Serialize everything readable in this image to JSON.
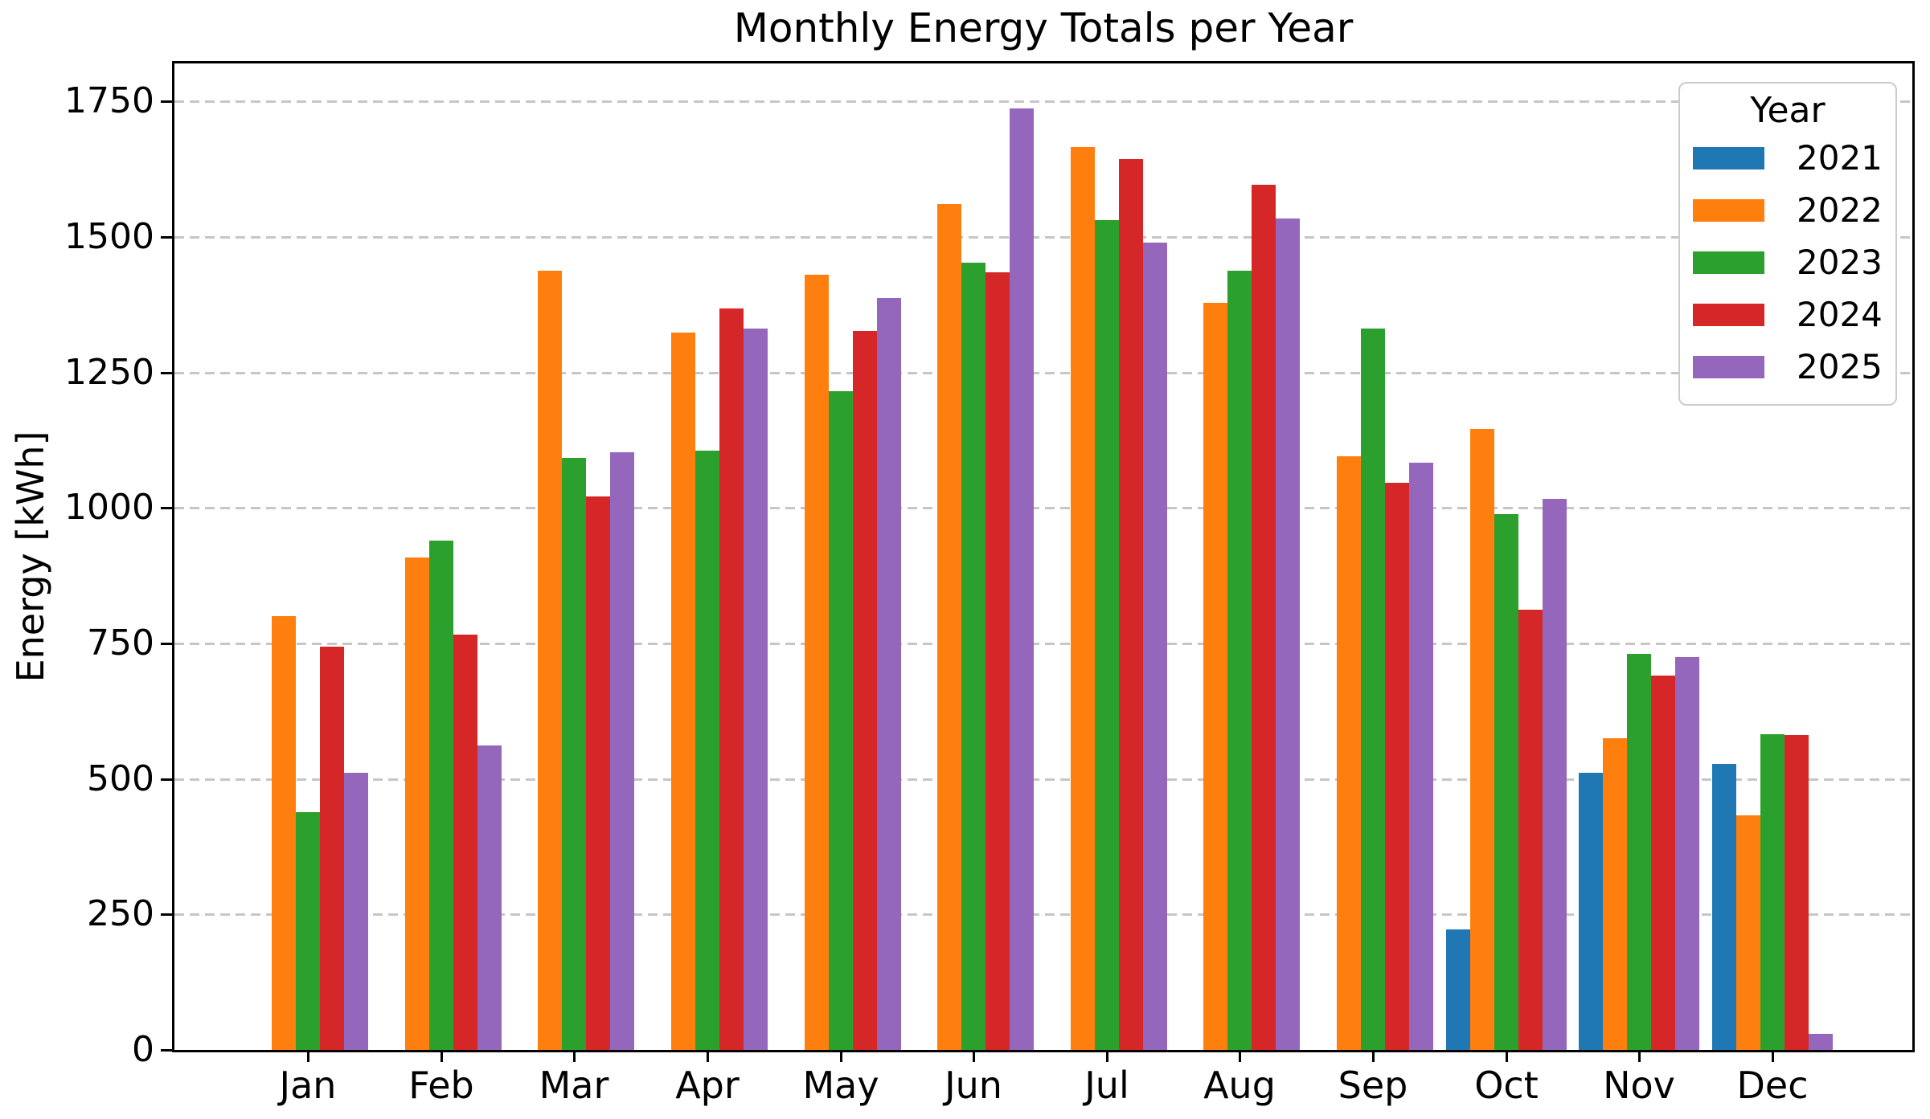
{
  "chart_data": {
    "type": "bar",
    "title": "Monthly Energy Totals per Year",
    "xlabel": "",
    "ylabel": "Energy [kWh]",
    "categories": [
      "Jan",
      "Feb",
      "Mar",
      "Apr",
      "May",
      "Jun",
      "Jul",
      "Aug",
      "Sep",
      "Oct",
      "Nov",
      "Dec"
    ],
    "yticks": [
      0,
      250,
      500,
      750,
      1000,
      1250,
      1500,
      1750
    ],
    "ylim": [
      0,
      1820
    ],
    "grid": {
      "axis": "y",
      "style": "dashed",
      "color": "#c6c6c6"
    },
    "legend": {
      "title": "Year",
      "position": "upper right"
    },
    "series": [
      {
        "name": "2021",
        "color": "#1f77b4",
        "values": [
          null,
          null,
          null,
          null,
          null,
          null,
          null,
          null,
          null,
          222,
          512,
          528
        ]
      },
      {
        "name": "2022",
        "color": "#ff7f0e",
        "values": [
          801,
          908,
          1437,
          1323,
          1430,
          1560,
          1666,
          1378,
          1095,
          1146,
          575,
          433
        ]
      },
      {
        "name": "2023",
        "color": "#2ca02c",
        "values": [
          439,
          940,
          1093,
          1106,
          1216,
          1452,
          1531,
          1437,
          1331,
          988,
          730,
          582
        ]
      },
      {
        "name": "2024",
        "color": "#d62728",
        "values": [
          744,
          766,
          1021,
          1368,
          1327,
          1435,
          1644,
          1596,
          1046,
          812,
          690,
          581
        ]
      },
      {
        "name": "2025",
        "color": "#9467bd",
        "values": [
          511,
          562,
          1103,
          1331,
          1387,
          1737,
          1489,
          1534,
          1083,
          1017,
          724,
          30
        ]
      }
    ]
  }
}
